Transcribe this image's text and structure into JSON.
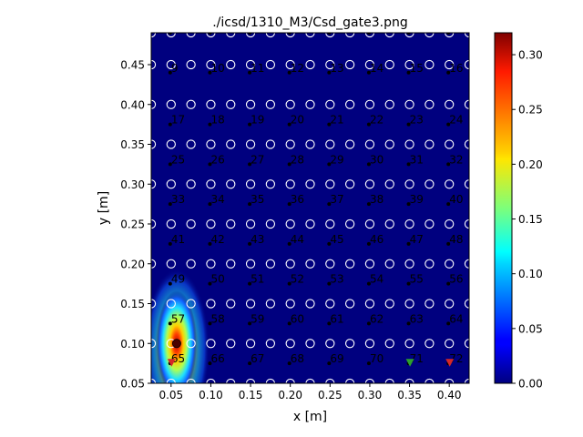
{
  "chart_data": {
    "type": "heatmap",
    "title": "./icsd/1310_M3/Csd_gate3.png",
    "xlabel": "x [m]",
    "ylabel": "y [m]",
    "xlim": [
      0.025,
      0.425
    ],
    "ylim": [
      0.05,
      0.49
    ],
    "xticks": [
      0.05,
      0.1,
      0.15,
      0.2,
      0.25,
      0.3,
      0.35,
      0.4
    ],
    "xtick_labels": [
      "0.05",
      "0.10",
      "0.15",
      "0.20",
      "0.25",
      "0.30",
      "0.35",
      "0.40"
    ],
    "yticks": [
      0.05,
      0.1,
      0.15,
      0.2,
      0.25,
      0.3,
      0.35,
      0.4,
      0.45
    ],
    "ytick_labels": [
      "0.05",
      "0.10",
      "0.15",
      "0.20",
      "0.25",
      "0.30",
      "0.35",
      "0.40",
      "0.45"
    ],
    "colorbar": {
      "colormap": "jet",
      "range": [
        0.0,
        0.32
      ],
      "ticks": [
        0.0,
        0.05,
        0.1,
        0.15,
        0.2,
        0.25,
        0.3
      ],
      "tick_labels": [
        "0.00",
        "0.05",
        "0.10",
        "0.15",
        "0.20",
        "0.25",
        "0.30"
      ]
    },
    "electrodes": {
      "x": [
        0.05,
        0.1,
        0.15,
        0.2,
        0.25,
        0.3,
        0.35,
        0.4
      ],
      "y": [
        0.49,
        0.44,
        0.375,
        0.325,
        0.275,
        0.225,
        0.175,
        0.125,
        0.075
      ],
      "labels": [
        "1",
        "2",
        "3",
        "4",
        "5",
        "6",
        "7",
        "8",
        "9",
        "10",
        "11",
        "12",
        "13",
        "14",
        "15",
        "16",
        "17",
        "18",
        "19",
        "20",
        "21",
        "22",
        "23",
        "24",
        "25",
        "26",
        "27",
        "28",
        "29",
        "30",
        "31",
        "32",
        "33",
        "34",
        "35",
        "36",
        "37",
        "38",
        "39",
        "40",
        "41",
        "42",
        "43",
        "44",
        "45",
        "46",
        "47",
        "48",
        "49",
        "50",
        "51",
        "52",
        "53",
        "54",
        "55",
        "56",
        "57",
        "58",
        "59",
        "60",
        "61",
        "62",
        "63",
        "64",
        "65",
        "66",
        "67",
        "68",
        "69",
        "70",
        "71",
        "72"
      ]
    },
    "source_grid": {
      "x": [
        0.025,
        0.05,
        0.075,
        0.1,
        0.125,
        0.15,
        0.175,
        0.2,
        0.225,
        0.25,
        0.275,
        0.3,
        0.325,
        0.35,
        0.375,
        0.4,
        0.425
      ],
      "y": [
        0.05,
        0.1,
        0.15,
        0.2,
        0.25,
        0.3,
        0.35,
        0.4,
        0.45,
        0.49
      ]
    },
    "peak": {
      "x": 0.057,
      "y": 0.1,
      "value": 0.32
    },
    "injection_markers": [
      {
        "x": 0.05,
        "y": 0.076,
        "color": "#d62728"
      },
      {
        "x": 0.35,
        "y": 0.076,
        "color": "#2ca02c"
      },
      {
        "x": 0.4,
        "y": 0.076,
        "color": "#d62728"
      }
    ]
  }
}
